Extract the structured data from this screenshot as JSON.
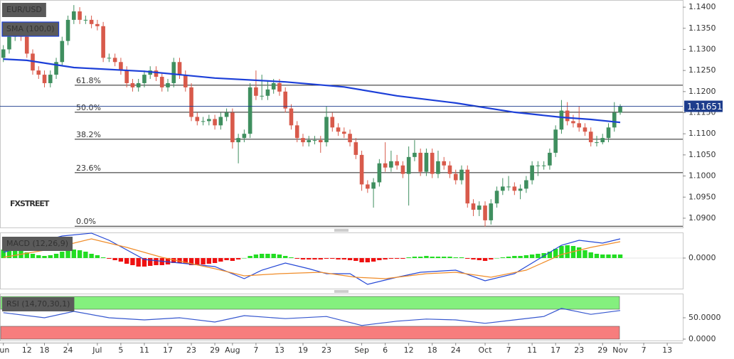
{
  "chart_data": [
    {
      "type": "candlestick",
      "title": "EUR/USD",
      "watermark": "FXSTREET",
      "open": [
        1.128,
        1.13,
        1.133,
        1.1335,
        1.133,
        1.129,
        1.125,
        1.124,
        1.122,
        1.124,
        1.127,
        1.132,
        1.137,
        1.139,
        1.137,
        1.137,
        1.136,
        1.1355,
        1.128,
        1.128,
        1.127,
        1.125,
        1.122,
        1.121,
        1.122,
        1.124,
        1.125,
        1.1235,
        1.121,
        1.122,
        1.127,
        1.124,
        1.121,
        1.114,
        1.113,
        1.113,
        1.1135,
        1.112,
        1.114,
        1.115,
        1.108,
        1.109,
        1.11,
        1.121,
        1.119,
        1.119,
        1.1205,
        1.122,
        1.12,
        1.116,
        1.112,
        1.109,
        1.108,
        1.1085,
        1.1085,
        1.108,
        1.114,
        1.1115,
        1.1105,
        1.11,
        1.108,
        1.105,
        1.098,
        1.097,
        1.0985,
        1.103,
        1.102,
        1.1035,
        1.1025,
        1.1005,
        1.1045,
        1.1055,
        1.101,
        1.1055,
        1.1005,
        1.1035,
        1.1025,
        1.1005,
        1.099,
        1.1015,
        1.0935,
        1.092,
        1.093,
        1.0895,
        1.0935,
        1.0965,
        1.0975,
        1.0975,
        1.0965,
        1.097,
        1.099,
        1.1025,
        1.1025,
        1.1025,
        1.1055,
        1.111,
        1.1155,
        1.113,
        1.1125,
        1.1115,
        1.1105,
        1.108,
        1.108,
        1.109,
        1.1115,
        1.115
      ],
      "high": [
        1.131,
        1.134,
        1.1345,
        1.1345,
        1.134,
        1.13,
        1.126,
        1.125,
        1.125,
        1.128,
        1.133,
        1.138,
        1.1405,
        1.14,
        1.138,
        1.138,
        1.137,
        1.1365,
        1.129,
        1.129,
        1.128,
        1.126,
        1.123,
        1.123,
        1.125,
        1.126,
        1.126,
        1.1245,
        1.123,
        1.128,
        1.128,
        1.125,
        1.122,
        1.115,
        1.114,
        1.1145,
        1.1145,
        1.115,
        1.116,
        1.116,
        1.11,
        1.111,
        1.122,
        1.125,
        1.124,
        1.1225,
        1.123,
        1.123,
        1.121,
        1.117,
        1.113,
        1.11,
        1.1095,
        1.1095,
        1.1095,
        1.1165,
        1.115,
        1.1125,
        1.1115,
        1.111,
        1.109,
        1.106,
        1.099,
        1.0995,
        1.104,
        1.108,
        1.106,
        1.105,
        1.1035,
        1.107,
        1.1085,
        1.1065,
        1.1065,
        1.1065,
        1.106,
        1.1045,
        1.1035,
        1.1015,
        1.1025,
        1.1025,
        1.0945,
        1.094,
        1.094,
        1.0945,
        1.0975,
        1.0995,
        1.1,
        1.0985,
        1.098,
        1.1,
        1.1035,
        1.1035,
        1.1035,
        1.1065,
        1.112,
        1.118,
        1.1175,
        1.1145,
        1.1165,
        1.1125,
        1.1115,
        1.1095,
        1.11,
        1.1125,
        1.1175,
        1.117
      ],
      "low": [
        1.127,
        1.129,
        1.132,
        1.132,
        1.128,
        1.124,
        1.123,
        1.121,
        1.121,
        1.123,
        1.126,
        1.131,
        1.136,
        1.136,
        1.136,
        1.135,
        1.1345,
        1.127,
        1.127,
        1.126,
        1.124,
        1.121,
        1.12,
        1.12,
        1.121,
        1.123,
        1.1225,
        1.12,
        1.12,
        1.121,
        1.123,
        1.12,
        1.113,
        1.112,
        1.112,
        1.112,
        1.111,
        1.111,
        1.113,
        1.1065,
        1.103,
        1.108,
        1.109,
        1.118,
        1.118,
        1.118,
        1.1195,
        1.119,
        1.115,
        1.111,
        1.108,
        1.107,
        1.107,
        1.1075,
        1.1055,
        1.107,
        1.1105,
        1.1095,
        1.109,
        1.107,
        1.104,
        1.0965,
        1.096,
        1.0925,
        1.0975,
        1.101,
        1.101,
        1.1015,
        1.0995,
        1.093,
        1.1035,
        1.1,
        1.1,
        1.0995,
        1.0995,
        1.1015,
        1.0995,
        1.098,
        1.098,
        1.0925,
        1.0905,
        1.0905,
        1.088,
        1.0885,
        1.0925,
        1.0955,
        1.0965,
        1.0955,
        1.0945,
        1.096,
        1.098,
        1.1,
        1.1015,
        1.1015,
        1.1045,
        1.11,
        1.112,
        1.1115,
        1.1105,
        1.1095,
        1.107,
        1.107,
        1.1075,
        1.108,
        1.1105,
        1.1145
      ],
      "close": [
        1.13,
        1.133,
        1.1335,
        1.133,
        1.129,
        1.125,
        1.124,
        1.122,
        1.124,
        1.127,
        1.132,
        1.137,
        1.139,
        1.137,
        1.137,
        1.136,
        1.1355,
        1.128,
        1.128,
        1.127,
        1.125,
        1.122,
        1.121,
        1.122,
        1.124,
        1.125,
        1.1235,
        1.121,
        1.122,
        1.127,
        1.124,
        1.121,
        1.114,
        1.113,
        1.113,
        1.1135,
        1.112,
        1.114,
        1.115,
        1.108,
        1.109,
        1.11,
        1.121,
        1.119,
        1.119,
        1.1205,
        1.122,
        1.12,
        1.116,
        1.112,
        1.109,
        1.108,
        1.1085,
        1.1085,
        1.108,
        1.114,
        1.1115,
        1.1105,
        1.11,
        1.108,
        1.105,
        1.098,
        1.097,
        1.0985,
        1.103,
        1.102,
        1.1035,
        1.1025,
        1.1005,
        1.1045,
        1.1055,
        1.101,
        1.1055,
        1.1005,
        1.1035,
        1.1025,
        1.1005,
        1.099,
        1.1015,
        1.0935,
        1.092,
        1.093,
        1.0895,
        1.0935,
        1.0965,
        1.0975,
        1.0975,
        1.0965,
        1.097,
        1.099,
        1.1025,
        1.1025,
        1.1025,
        1.1055,
        1.111,
        1.1155,
        1.113,
        1.1125,
        1.1115,
        1.1105,
        1.108,
        1.108,
        1.109,
        1.1115,
        1.115,
        1.1165
      ],
      "up_color": "#3f8f5f",
      "down_color": "#d85a4b",
      "overlays": [
        {
          "name": "SMA (100,0)",
          "color": "#1c3fd8",
          "x": [
            0,
            4,
            12,
            24,
            36,
            48,
            58,
            67,
            77,
            87,
            95,
            100,
            105
          ],
          "values": [
            1.1277,
            1.1274,
            1.1257,
            1.1248,
            1.1232,
            1.1223,
            1.1211,
            1.119,
            1.1173,
            1.1151,
            1.1139,
            1.1134,
            1.1127
          ]
        }
      ],
      "levels": [
        {
          "label": "61.8%",
          "value": 1.1215
        },
        {
          "label": "50.0%",
          "value": 1.1151
        },
        {
          "label": "38.2%",
          "value": 1.1087
        },
        {
          "label": "23.6%",
          "value": 1.1008
        },
        {
          "label": "0.0%",
          "value": 1.0881
        }
      ],
      "last_price": 1.11651,
      "last_price_color": "#1d3c8c",
      "ylim": [
        1.0878,
        1.1417
      ],
      "yticks": [
        {
          "value": 1.14,
          "label": "1.1400"
        },
        {
          "value": 1.135,
          "label": "1.1350"
        },
        {
          "value": 1.13,
          "label": "1.1300"
        },
        {
          "value": 1.125,
          "label": "1.1250"
        },
        {
          "value": 1.12,
          "label": "1.1200"
        },
        {
          "value": 1.115,
          "label": "1.1150"
        },
        {
          "value": 1.11,
          "label": "1.1100"
        },
        {
          "value": 1.105,
          "label": "1.1050"
        },
        {
          "value": 1.1,
          "label": "1.1000"
        },
        {
          "value": 1.095,
          "label": "1.0950"
        },
        {
          "value": 1.09,
          "label": "1.0900"
        }
      ],
      "xlim": [
        -0.57,
        115.65
      ],
      "xticks": [
        {
          "value": 0,
          "label": "Jun"
        },
        {
          "value": 4,
          "label": "12"
        },
        {
          "value": 7,
          "label": "18"
        },
        {
          "value": 11,
          "label": "24"
        },
        {
          "value": 16,
          "label": "Jul"
        },
        {
          "value": 20,
          "label": "5"
        },
        {
          "value": 24,
          "label": "11"
        },
        {
          "value": 28,
          "label": "17"
        },
        {
          "value": 32,
          "label": "23"
        },
        {
          "value": 36,
          "label": "29"
        },
        {
          "value": 39,
          "label": "Aug"
        },
        {
          "value": 43,
          "label": "7"
        },
        {
          "value": 47,
          "label": "13"
        },
        {
          "value": 51,
          "label": "19"
        },
        {
          "value": 55,
          "label": "23"
        },
        {
          "value": 61,
          "label": "Sep"
        },
        {
          "value": 65,
          "label": "6"
        },
        {
          "value": 69,
          "label": "12"
        },
        {
          "value": 73,
          "label": "18"
        },
        {
          "value": 77,
          "label": "24"
        },
        {
          "value": 82,
          "label": "Oct"
        },
        {
          "value": 86,
          "label": "7"
        },
        {
          "value": 90,
          "label": "11"
        },
        {
          "value": 94,
          "label": "17"
        },
        {
          "value": 98,
          "label": "23"
        },
        {
          "value": 102,
          "label": "29"
        },
        {
          "value": 105,
          "label": "Nov"
        },
        {
          "value": 109,
          "label": "7"
        },
        {
          "value": 113,
          "label": "13"
        }
      ]
    },
    {
      "type": "macd",
      "title": "MACD (12,26,9)",
      "histogram": [
        0.0012,
        0.0012,
        0.0012,
        0.001,
        0.0008,
        0.0006,
        0.0004,
        0.0003,
        0.0004,
        0.0006,
        0.0009,
        0.0011,
        0.0012,
        0.0011,
        0.0009,
        0.0006,
        0.0004,
        0.0001,
        -0.0001,
        -0.0003,
        -0.0005,
        -0.0008,
        -0.001,
        -0.0012,
        -0.0012,
        -0.0011,
        -0.001,
        -0.001,
        -0.0009,
        -0.0007,
        -0.0007,
        -0.0008,
        -0.001,
        -0.001,
        -0.0009,
        -0.0008,
        -0.0007,
        -0.0005,
        -0.0003,
        -0.0004,
        -0.0002,
        0,
        0.0003,
        0.0005,
        0.0006,
        0.0006,
        0.0006,
        0.0005,
        0.0003,
        0.0001,
        -0.0001,
        -0.0002,
        -0.0002,
        -0.0002,
        -0.0002,
        -0.0001,
        -0.0001,
        -0.0002,
        -0.0002,
        -0.0003,
        -0.0004,
        -0.0006,
        -0.0006,
        -0.0005,
        -0.0003,
        -0.0002,
        -0.0001,
        -0.0001,
        -0.0001,
        0.0001,
        0.0002,
        0.0002,
        0.0003,
        0.0002,
        0.0002,
        0.0002,
        0.0002,
        0.0001,
        0.0001,
        -0.0001,
        -0.0002,
        -0.0003,
        -0.0004,
        -0.0002,
        0,
        0.0001,
        0.0002,
        0.0003,
        0.0003,
        0.0004,
        0.0005,
        0.0006,
        0.0007,
        0.0009,
        0.0013,
        0.0017,
        0.0018,
        0.0017,
        0.0015,
        0.0011,
        0.0008,
        0.0006,
        0.0005,
        0.0005,
        0.0005,
        0.0005
      ],
      "hist_up_color": "#22dd22",
      "hist_down_color": "#ee1111",
      "series": [
        {
          "color": "#2447d6",
          "x": [
            0,
            4,
            10,
            15,
            18,
            24,
            30,
            36,
            41,
            44,
            48,
            52,
            55,
            59,
            62,
            67,
            71,
            77,
            82,
            87,
            91,
            95,
            98,
            102,
            105
          ],
          "values": [
            0.0008,
            0.0018,
            0.0031,
            0.0035,
            0.0025,
            -0.0002,
            -0.0007,
            -0.0012,
            -0.0029,
            -0.0017,
            -0.0007,
            -0.0015,
            -0.0022,
            -0.0022,
            -0.0037,
            -0.0027,
            -0.002,
            -0.0017,
            -0.0032,
            -0.0022,
            -0.0002,
            0.0018,
            0.0025,
            0.0021,
            0.0027
          ]
        },
        {
          "color": "#f08c28",
          "x": [
            0,
            7,
            15,
            21,
            27,
            36,
            41,
            47,
            54,
            60,
            65,
            72,
            77,
            83,
            89,
            95,
            100,
            105
          ],
          "values": [
            0.0001,
            0.0011,
            0.0027,
            0.0015,
            0.0001,
            -0.0015,
            -0.0025,
            -0.0022,
            -0.002,
            -0.0027,
            -0.0029,
            -0.0022,
            -0.002,
            -0.0027,
            -0.0017,
            0.0005,
            0.0015,
            0.0023
          ]
        }
      ],
      "ylim": [
        -0.0043,
        0.0035
      ],
      "yticks": [
        {
          "value": 0,
          "label": "0.0000"
        }
      ]
    },
    {
      "type": "line",
      "title": "RSI (14,70,30,1)",
      "bands": [
        {
          "from": 70,
          "to": 100,
          "color": "#84f07e"
        },
        {
          "from": 0,
          "to": 30,
          "color": "#f77d7d"
        }
      ],
      "series": [
        {
          "color": "#3657cf",
          "x": [
            0,
            7,
            12,
            18,
            24,
            30,
            36,
            41,
            48,
            55,
            61,
            67,
            72,
            77,
            82,
            87,
            92,
            95,
            100,
            105
          ],
          "values": [
            62,
            50,
            65,
            50,
            45,
            50,
            40,
            55,
            48,
            53,
            32,
            42,
            47,
            45,
            37,
            45,
            53,
            72,
            58,
            67
          ]
        }
      ],
      "ylim": [
        0,
        100
      ],
      "yticks": [
        {
          "value": 50,
          "label": "50.0000"
        },
        {
          "value": 0,
          "label": "0.0000"
        }
      ]
    }
  ]
}
